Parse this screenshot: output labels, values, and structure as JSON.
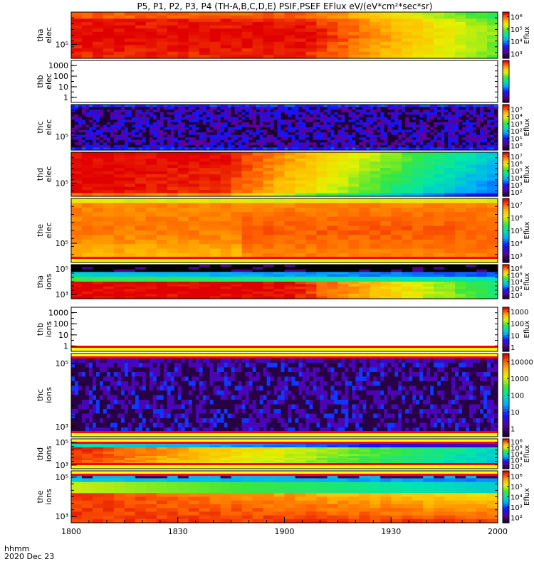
{
  "title": "P5, P1, P2, P3, P4 (TH-A,B,C,D,E) PSIF,PSEF EFlux eV/(eV*cm²*sec*sr)",
  "footer": {
    "time_label": "hhmm",
    "date_label": "2020 Dec 23"
  },
  "chart_data": {
    "type": "heatmap",
    "title": "P5, P1, P2, P3, P4 (TH-A,B,C,D,E) PSIF,PSEF EFlux eV/(eV*cm²*sec*sr)",
    "x_ticks": [
      "1800",
      "1830",
      "1900",
      "1930",
      "2000"
    ],
    "panels": [
      {
        "name": "tha-elec",
        "ylabel": [
          "tha",
          "elec"
        ],
        "yticks": [
          "10⁵"
        ],
        "cbar_label": "Eflux",
        "cbar_ticks": [
          "10⁶",
          "10⁵",
          "10⁴",
          "10³"
        ],
        "pattern": "elec_red_fade",
        "seed": 1,
        "upper_band": false,
        "lower_band": false
      },
      {
        "name": "thb-elec",
        "ylabel": [
          "thb",
          "elec"
        ],
        "yticks": [
          "1000",
          "100",
          "10",
          "1"
        ],
        "cbar_label": "",
        "cbar_ticks": [],
        "pattern": "empty",
        "seed": 2,
        "upper_band": false,
        "lower_band": false
      },
      {
        "name": "thc-elec",
        "ylabel": [
          "thc",
          "elec"
        ],
        "yticks": [
          "10⁵"
        ],
        "cbar_label": "Eflux",
        "cbar_ticks": [
          "10⁵",
          "10⁴",
          "10³",
          "10²",
          "10¹",
          "10⁰"
        ],
        "pattern": "noise_dark",
        "seed": 3,
        "upper_band": false,
        "lower_band": false
      },
      {
        "name": "thd-elec",
        "ylabel": [
          "thd",
          "elec"
        ],
        "yticks": [
          "10⁵"
        ],
        "cbar_label": "Eflux",
        "cbar_ticks": [
          "10⁷",
          "10⁶",
          "10⁵",
          "10⁴",
          "10³",
          "10²"
        ],
        "pattern": "elec_red_fade_green",
        "seed": 4,
        "upper_band": false,
        "lower_band": false
      },
      {
        "name": "the-elec",
        "ylabel": [
          "the",
          "elec"
        ],
        "yticks": [
          "10⁵"
        ],
        "cbar_label": "Eflux",
        "cbar_ticks": [
          "10⁷",
          "10⁶",
          "10⁵",
          "10⁴",
          "10³"
        ],
        "pattern": "elec_red_dark",
        "seed": 5,
        "upper_band": false,
        "lower_band": true
      },
      {
        "name": "tha-ions",
        "ylabel": [
          "tha",
          "ions"
        ],
        "yticks": [
          "10⁵",
          "10³"
        ],
        "cbar_label": "Eflux",
        "cbar_ticks": [
          "10⁶",
          "10⁵",
          "10⁴",
          "10³",
          "10²"
        ],
        "pattern": "ions_banded",
        "seed": 6,
        "upper_band": false,
        "lower_band": false
      },
      {
        "name": "thb-ions",
        "ylabel": [
          "thb",
          "ions"
        ],
        "yticks": [
          "1000",
          "100",
          "10",
          "1"
        ],
        "cbar_label": "Eflux",
        "cbar_ticks": [
          "1000",
          "100",
          "10",
          "1"
        ],
        "pattern": "empty",
        "seed": 7,
        "upper_band": false,
        "lower_band": true
      },
      {
        "name": "thc-ions",
        "ylabel": [
          "thc",
          "ions"
        ],
        "yticks": [
          "10⁵",
          "10³"
        ],
        "cbar_label": "",
        "cbar_ticks": [
          "10000",
          "1000",
          "100",
          "10",
          "1"
        ],
        "pattern": "noise_stripes",
        "seed": 8,
        "upper_band": true,
        "lower_band": true
      },
      {
        "name": "thd-ions",
        "ylabel": [
          "thd",
          "ions"
        ],
        "yticks": [
          "10⁵",
          "10³"
        ],
        "cbar_label": "Eflux",
        "cbar_ticks": [
          "10⁶",
          "10⁵",
          "10⁴",
          "10³",
          "10²"
        ],
        "pattern": "ions_banded2",
        "seed": 9,
        "upper_band": true,
        "lower_band": true
      },
      {
        "name": "the-ions",
        "ylabel": [
          "the",
          "ions"
        ],
        "yticks": [
          "10⁵",
          "10³"
        ],
        "cbar_label": "Eflux",
        "cbar_ticks": [
          "10⁶",
          "10⁵",
          "10⁴",
          "10³",
          "10²"
        ],
        "pattern": "ions_striped_top",
        "seed": 10,
        "upper_band": true,
        "lower_band": false
      }
    ]
  }
}
